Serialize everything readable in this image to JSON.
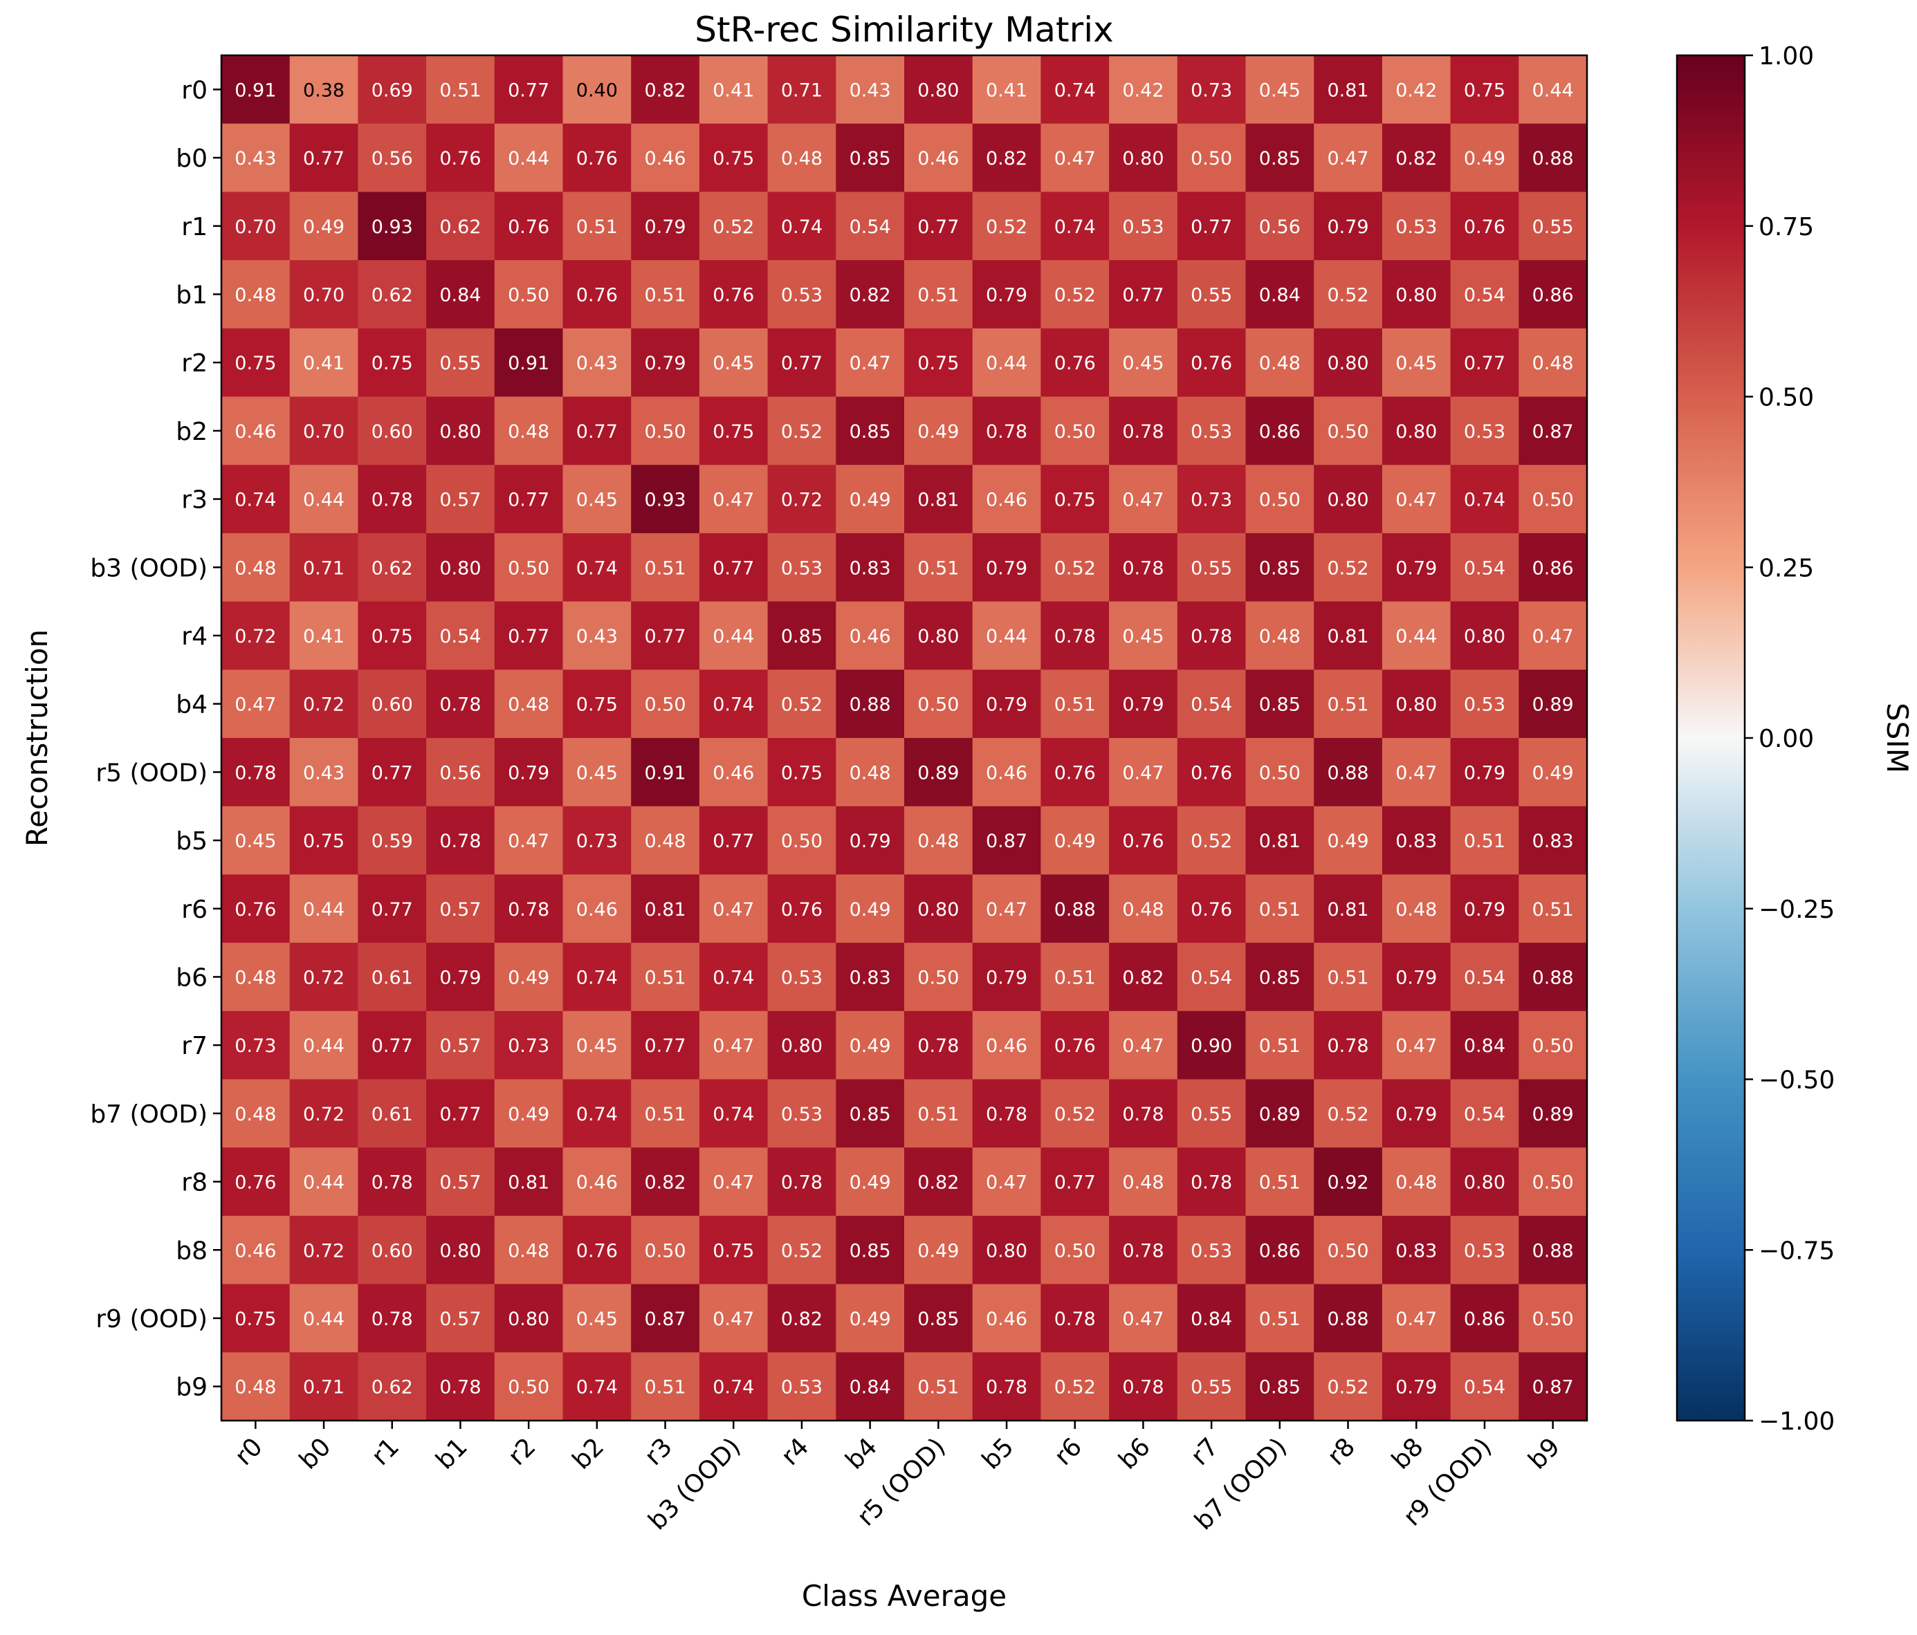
{
  "chart_data": {
    "type": "heatmap",
    "title": "StR-rec Similarity Matrix",
    "xlabel": "Class Average",
    "ylabel": "Reconstruction",
    "x_categories": [
      "r0",
      "b0",
      "r1",
      "b1",
      "r2",
      "b2",
      "r3",
      "b3 (OOD)",
      "r4",
      "b4",
      "r5 (OOD)",
      "b5",
      "r6",
      "b6",
      "r7",
      "b7 (OOD)",
      "r8",
      "b8",
      "r9 (OOD)",
      "b9"
    ],
    "y_categories": [
      "r0",
      "b0",
      "r1",
      "b1",
      "r2",
      "b2",
      "r3",
      "b3 (OOD)",
      "r4",
      "b4",
      "r5 (OOD)",
      "b5",
      "r6",
      "b6",
      "r7",
      "b7 (OOD)",
      "r8",
      "b8",
      "r9 (OOD)",
      "b9"
    ],
    "values": [
      [
        0.91,
        0.38,
        0.69,
        0.51,
        0.77,
        0.4,
        0.82,
        0.41,
        0.71,
        0.43,
        0.8,
        0.41,
        0.74,
        0.42,
        0.73,
        0.45,
        0.81,
        0.42,
        0.75,
        0.44
      ],
      [
        0.43,
        0.77,
        0.56,
        0.76,
        0.44,
        0.76,
        0.46,
        0.75,
        0.48,
        0.85,
        0.46,
        0.82,
        0.47,
        0.8,
        0.5,
        0.85,
        0.47,
        0.82,
        0.49,
        0.88
      ],
      [
        0.7,
        0.49,
        0.93,
        0.62,
        0.76,
        0.51,
        0.79,
        0.52,
        0.74,
        0.54,
        0.77,
        0.52,
        0.74,
        0.53,
        0.77,
        0.56,
        0.79,
        0.53,
        0.76,
        0.55
      ],
      [
        0.48,
        0.7,
        0.62,
        0.84,
        0.5,
        0.76,
        0.51,
        0.76,
        0.53,
        0.82,
        0.51,
        0.79,
        0.52,
        0.77,
        0.55,
        0.84,
        0.52,
        0.8,
        0.54,
        0.86
      ],
      [
        0.75,
        0.41,
        0.75,
        0.55,
        0.91,
        0.43,
        0.79,
        0.45,
        0.77,
        0.47,
        0.75,
        0.44,
        0.76,
        0.45,
        0.76,
        0.48,
        0.8,
        0.45,
        0.77,
        0.48
      ],
      [
        0.46,
        0.7,
        0.6,
        0.8,
        0.48,
        0.77,
        0.5,
        0.75,
        0.52,
        0.85,
        0.49,
        0.78,
        0.5,
        0.78,
        0.53,
        0.86,
        0.5,
        0.8,
        0.53,
        0.87
      ],
      [
        0.74,
        0.44,
        0.78,
        0.57,
        0.77,
        0.45,
        0.93,
        0.47,
        0.72,
        0.49,
        0.81,
        0.46,
        0.75,
        0.47,
        0.73,
        0.5,
        0.8,
        0.47,
        0.74,
        0.5
      ],
      [
        0.48,
        0.71,
        0.62,
        0.8,
        0.5,
        0.74,
        0.51,
        0.77,
        0.53,
        0.83,
        0.51,
        0.79,
        0.52,
        0.78,
        0.55,
        0.85,
        0.52,
        0.79,
        0.54,
        0.86
      ],
      [
        0.72,
        0.41,
        0.75,
        0.54,
        0.77,
        0.43,
        0.77,
        0.44,
        0.85,
        0.46,
        0.8,
        0.44,
        0.78,
        0.45,
        0.78,
        0.48,
        0.81,
        0.44,
        0.8,
        0.47
      ],
      [
        0.47,
        0.72,
        0.6,
        0.78,
        0.48,
        0.75,
        0.5,
        0.74,
        0.52,
        0.88,
        0.5,
        0.79,
        0.51,
        0.79,
        0.54,
        0.85,
        0.51,
        0.8,
        0.53,
        0.89
      ],
      [
        0.78,
        0.43,
        0.77,
        0.56,
        0.79,
        0.45,
        0.91,
        0.46,
        0.75,
        0.48,
        0.89,
        0.46,
        0.76,
        0.47,
        0.76,
        0.5,
        0.88,
        0.47,
        0.79,
        0.49
      ],
      [
        0.45,
        0.75,
        0.59,
        0.78,
        0.47,
        0.73,
        0.48,
        0.77,
        0.5,
        0.79,
        0.48,
        0.87,
        0.49,
        0.76,
        0.52,
        0.81,
        0.49,
        0.83,
        0.51,
        0.83
      ],
      [
        0.76,
        0.44,
        0.77,
        0.57,
        0.78,
        0.46,
        0.81,
        0.47,
        0.76,
        0.49,
        0.8,
        0.47,
        0.88,
        0.48,
        0.76,
        0.51,
        0.81,
        0.48,
        0.79,
        0.51
      ],
      [
        0.48,
        0.72,
        0.61,
        0.79,
        0.49,
        0.74,
        0.51,
        0.74,
        0.53,
        0.83,
        0.5,
        0.79,
        0.51,
        0.82,
        0.54,
        0.85,
        0.51,
        0.79,
        0.54,
        0.88
      ],
      [
        0.73,
        0.44,
        0.77,
        0.57,
        0.73,
        0.45,
        0.77,
        0.47,
        0.8,
        0.49,
        0.78,
        0.46,
        0.76,
        0.47,
        0.9,
        0.51,
        0.78,
        0.47,
        0.84,
        0.5
      ],
      [
        0.48,
        0.72,
        0.61,
        0.77,
        0.49,
        0.74,
        0.51,
        0.74,
        0.53,
        0.85,
        0.51,
        0.78,
        0.52,
        0.78,
        0.55,
        0.89,
        0.52,
        0.79,
        0.54,
        0.89
      ],
      [
        0.76,
        0.44,
        0.78,
        0.57,
        0.81,
        0.46,
        0.82,
        0.47,
        0.78,
        0.49,
        0.82,
        0.47,
        0.77,
        0.48,
        0.78,
        0.51,
        0.92,
        0.48,
        0.8,
        0.5
      ],
      [
        0.46,
        0.72,
        0.6,
        0.8,
        0.48,
        0.76,
        0.5,
        0.75,
        0.52,
        0.85,
        0.49,
        0.8,
        0.5,
        0.78,
        0.53,
        0.86,
        0.5,
        0.83,
        0.53,
        0.88
      ],
      [
        0.75,
        0.44,
        0.78,
        0.57,
        0.8,
        0.45,
        0.87,
        0.47,
        0.82,
        0.49,
        0.85,
        0.46,
        0.78,
        0.47,
        0.84,
        0.51,
        0.88,
        0.47,
        0.86,
        0.5
      ],
      [
        0.48,
        0.71,
        0.62,
        0.78,
        0.5,
        0.74,
        0.51,
        0.74,
        0.53,
        0.84,
        0.51,
        0.78,
        0.52,
        0.78,
        0.55,
        0.85,
        0.52,
        0.79,
        0.54,
        0.87
      ]
    ],
    "colormap": "RdBu_r",
    "vmin": -1.0,
    "vmax": 1.0,
    "colorbar_label": "SSIM",
    "colorbar_ticks": [
      "−1.00",
      "−0.75",
      "−0.50",
      "−0.25",
      "0.00",
      "0.25",
      "0.50",
      "0.75",
      "1.00"
    ],
    "colorbar_tick_values": [
      -1.0,
      -0.75,
      -0.5,
      -0.25,
      0.0,
      0.25,
      0.5,
      0.75,
      1.0
    ],
    "cell_value_format": "2-decimal",
    "text_color_light": "#ffffff",
    "text_color_dark": "#000000"
  }
}
